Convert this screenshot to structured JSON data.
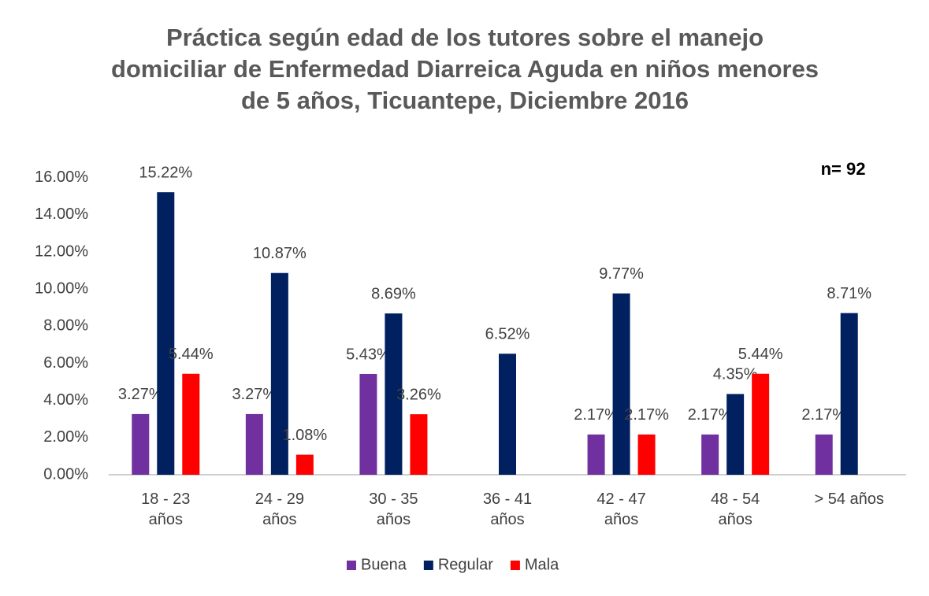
{
  "chart_data": {
    "type": "bar",
    "title": "Práctica según edad de los tutores sobre el manejo domiciliar de Enfermedad Diarreica Aguda en niños menores de 5 años, Ticuantepe, Diciembre 2016",
    "annotation": "n= 92",
    "categories": [
      "18 - 23 años",
      "24 - 29 años",
      "30 - 35 años",
      "36 - 41 años",
      "42 - 47 años",
      "48 - 54 años",
      "> 54 años"
    ],
    "series": [
      {
        "name": "Buena",
        "color": "#7030a0",
        "values": [
          3.27,
          3.27,
          5.43,
          null,
          2.17,
          2.17,
          2.17
        ],
        "value_labels": [
          "3.27%",
          "3.27%",
          "5.43%",
          null,
          "2.17%",
          "2.17%",
          "2.17%"
        ]
      },
      {
        "name": "Regular",
        "color": "#002060",
        "values": [
          15.22,
          10.87,
          8.69,
          6.52,
          9.77,
          4.35,
          8.71
        ],
        "value_labels": [
          "15.22%",
          "10.87%",
          "8.69%",
          "6.52%",
          "9.77%",
          "4.35%",
          "8.71%"
        ]
      },
      {
        "name": "Mala",
        "color": "#ff0000",
        "values": [
          5.44,
          1.08,
          3.26,
          null,
          2.17,
          5.44,
          null
        ],
        "value_labels": [
          "5.44%",
          "1.08%",
          "3.26%",
          null,
          "2.17%",
          "5.44%",
          null
        ]
      }
    ],
    "ylim": [
      0,
      16.5
    ],
    "yticks": [
      {
        "value": 0,
        "label": "0.00%"
      },
      {
        "value": 2,
        "label": "2.00%"
      },
      {
        "value": 4,
        "label": "4.00%"
      },
      {
        "value": 6,
        "label": "6.00%"
      },
      {
        "value": 8,
        "label": "8.00%"
      },
      {
        "value": 10,
        "label": "10.00%"
      },
      {
        "value": 12,
        "label": "12.00%"
      },
      {
        "value": 14,
        "label": "14.00%"
      },
      {
        "value": 16,
        "label": "16.00%"
      }
    ],
    "grid": false,
    "legend": "bottom"
  }
}
